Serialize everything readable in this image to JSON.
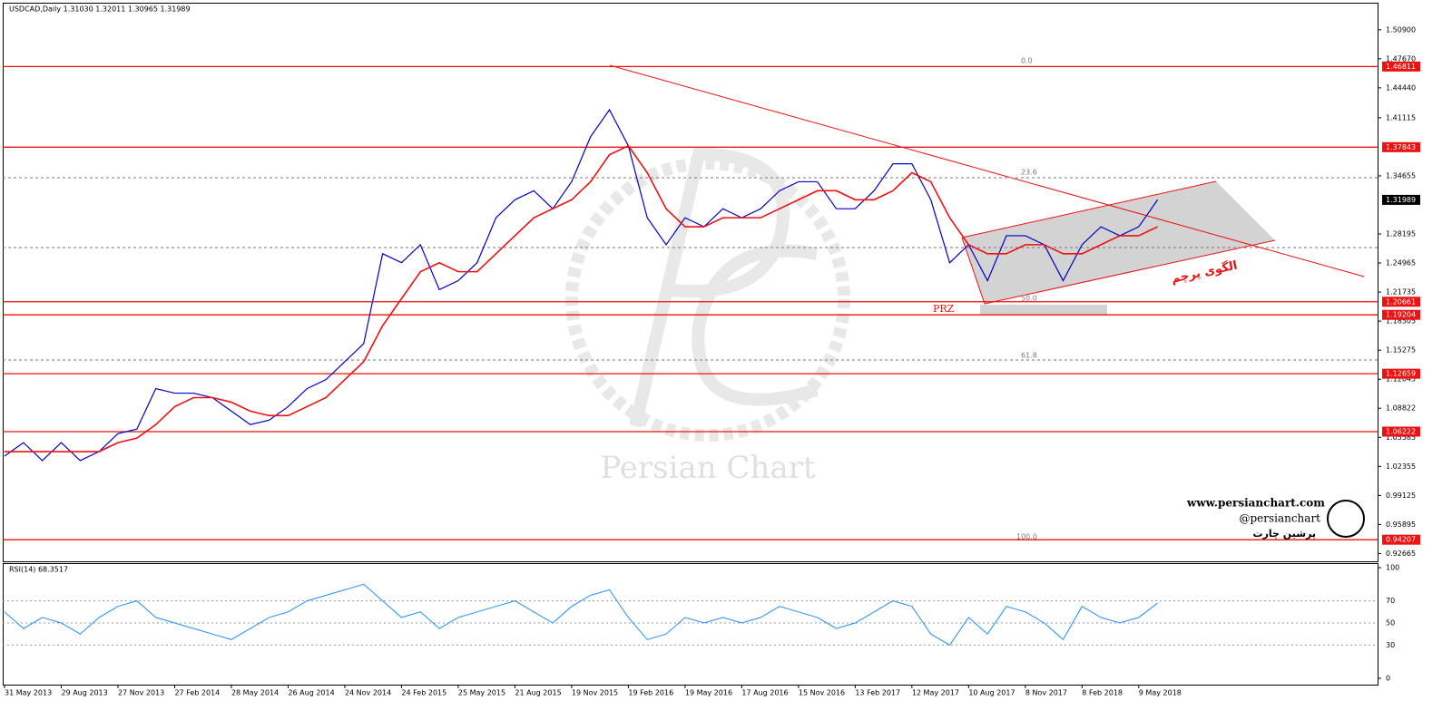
{
  "chart_data": [
    {
      "type": "line",
      "title": "USDCAD,Daily  1.31030 1.32011 1.30965 1.31989",
      "categories": [
        "31 May 2013",
        null,
        null,
        "29 Aug 2013",
        null,
        null,
        "27 Nov 2013",
        null,
        null,
        "27 Feb 2014",
        null,
        null,
        "28 May 2014",
        null,
        null,
        "26 Aug 2014",
        null,
        null,
        "24 Nov 2014",
        null,
        null,
        "24 Feb 2015",
        null,
        null,
        "25 May 2015",
        null,
        null,
        "21 Aug 2015",
        null,
        null,
        "19 Nov 2015",
        null,
        null,
        "19 Feb 2016",
        null,
        null,
        "19 May 2016",
        null,
        null,
        "17 Aug 2016",
        null,
        null,
        "15 Nov 2016",
        null,
        null,
        "13 Feb 2017",
        null,
        null,
        "12 May 2017",
        null,
        null,
        "10 Aug 2017",
        null,
        null,
        "8 Nov 2017",
        null,
        null,
        "8 Feb 2018",
        null,
        null,
        "9 May 2018",
        null
      ],
      "series": [
        {
          "color": "#0000cc",
          "values": [
            1.035,
            1.05,
            1.03,
            1.05,
            1.03,
            1.04,
            1.06,
            1.065,
            1.11,
            1.105,
            1.105,
            1.1,
            1.085,
            1.07,
            1.075,
            1.09,
            1.11,
            1.12,
            1.14,
            1.16,
            1.26,
            1.25,
            1.27,
            1.22,
            1.23,
            1.25,
            1.3,
            1.32,
            1.33,
            1.31,
            1.34,
            1.39,
            1.42,
            1.38,
            1.3,
            1.27,
            1.3,
            1.29,
            1.31,
            1.3,
            1.31,
            1.33,
            1.34,
            1.34,
            1.31,
            1.31,
            1.33,
            1.36,
            1.36,
            1.32,
            1.25,
            1.27,
            1.23,
            1.28,
            1.28,
            1.27,
            1.23,
            1.27,
            1.29,
            1.28,
            1.29,
            1.32
          ]
        },
        {
          "color": "#ee1111",
          "values": [
            1.04,
            1.04,
            1.04,
            1.04,
            1.04,
            1.04,
            1.05,
            1.055,
            1.07,
            1.09,
            1.1,
            1.1,
            1.095,
            1.085,
            1.08,
            1.08,
            1.09,
            1.1,
            1.12,
            1.14,
            1.18,
            1.21,
            1.24,
            1.25,
            1.24,
            1.24,
            1.26,
            1.28,
            1.3,
            1.31,
            1.32,
            1.34,
            1.37,
            1.38,
            1.35,
            1.31,
            1.29,
            1.29,
            1.3,
            1.3,
            1.3,
            1.31,
            1.32,
            1.33,
            1.33,
            1.32,
            1.32,
            1.33,
            1.35,
            1.34,
            1.3,
            1.27,
            1.26,
            1.26,
            1.27,
            1.27,
            1.26,
            1.26,
            1.27,
            1.28,
            1.28,
            1.29
          ]
        }
      ],
      "ylim": [
        0.912,
        1.534
      ],
      "yticks": [
        {
          "value": 1.509,
          "label": "1.50900"
        },
        {
          "value": 1.4767,
          "label": "1.47670"
        },
        {
          "value": 1.4444,
          "label": "1.44440"
        },
        {
          "value": 1.41115,
          "label": "1.41115"
        },
        {
          "value": 1.34655,
          "label": "1.34655"
        },
        {
          "value": 1.28195,
          "label": "1.28195"
        },
        {
          "value": 1.24965,
          "label": "1.24965"
        },
        {
          "value": 1.21735,
          "label": "1.21735"
        },
        {
          "value": 1.18505,
          "label": "1.18505"
        },
        {
          "value": 1.15275,
          "label": "1.15275"
        },
        {
          "value": 1.12045,
          "label": "1.12045"
        },
        {
          "value": 1.08822,
          "label": "1.08822"
        },
        {
          "value": 1.05585,
          "label": "1.05585"
        },
        {
          "value": 1.02355,
          "label": "1.02355"
        },
        {
          "value": 0.99125,
          "label": "0.99125"
        },
        {
          "value": 0.95895,
          "label": "0.95895"
        },
        {
          "value": 0.92665,
          "label": "0.92665"
        }
      ],
      "levels": [
        {
          "value": 1.46811,
          "label": "1.46811"
        },
        {
          "value": 1.37843,
          "label": "1.37843"
        },
        {
          "value": 1.20661,
          "label": "1.20661"
        },
        {
          "value": 1.19204,
          "label": "1.19204"
        },
        {
          "value": 1.12659,
          "label": "1.12659"
        },
        {
          "value": 1.06222,
          "label": "1.06222"
        },
        {
          "value": 0.94207,
          "label": "0.94207"
        }
      ],
      "current_price": {
        "value": 1.31989,
        "label": "1.31989"
      },
      "annotations": [
        "0.0",
        "23.6",
        "50.0",
        "61.8",
        "100.0",
        "PRZ",
        "الگوی پرچم",
        "Persian Chart",
        "www.persianchart.com",
        "@persianchart",
        "پرشین چارت"
      ]
    },
    {
      "type": "line",
      "title": "RSI(14) 68.3517",
      "color": "#1e90ff",
      "values": [
        60,
        45,
        55,
        50,
        40,
        55,
        65,
        70,
        55,
        50,
        45,
        40,
        35,
        45,
        55,
        60,
        70,
        75,
        80,
        85,
        70,
        55,
        60,
        45,
        55,
        60,
        65,
        70,
        60,
        50,
        65,
        75,
        80,
        55,
        35,
        40,
        55,
        50,
        55,
        50,
        55,
        65,
        60,
        55,
        45,
        50,
        60,
        70,
        65,
        40,
        30,
        55,
        40,
        65,
        60,
        50,
        35,
        65,
        55,
        50,
        55,
        68
      ],
      "ylim": [
        0,
        100
      ],
      "yticks": [
        0,
        30,
        50,
        70,
        100
      ]
    }
  ]
}
